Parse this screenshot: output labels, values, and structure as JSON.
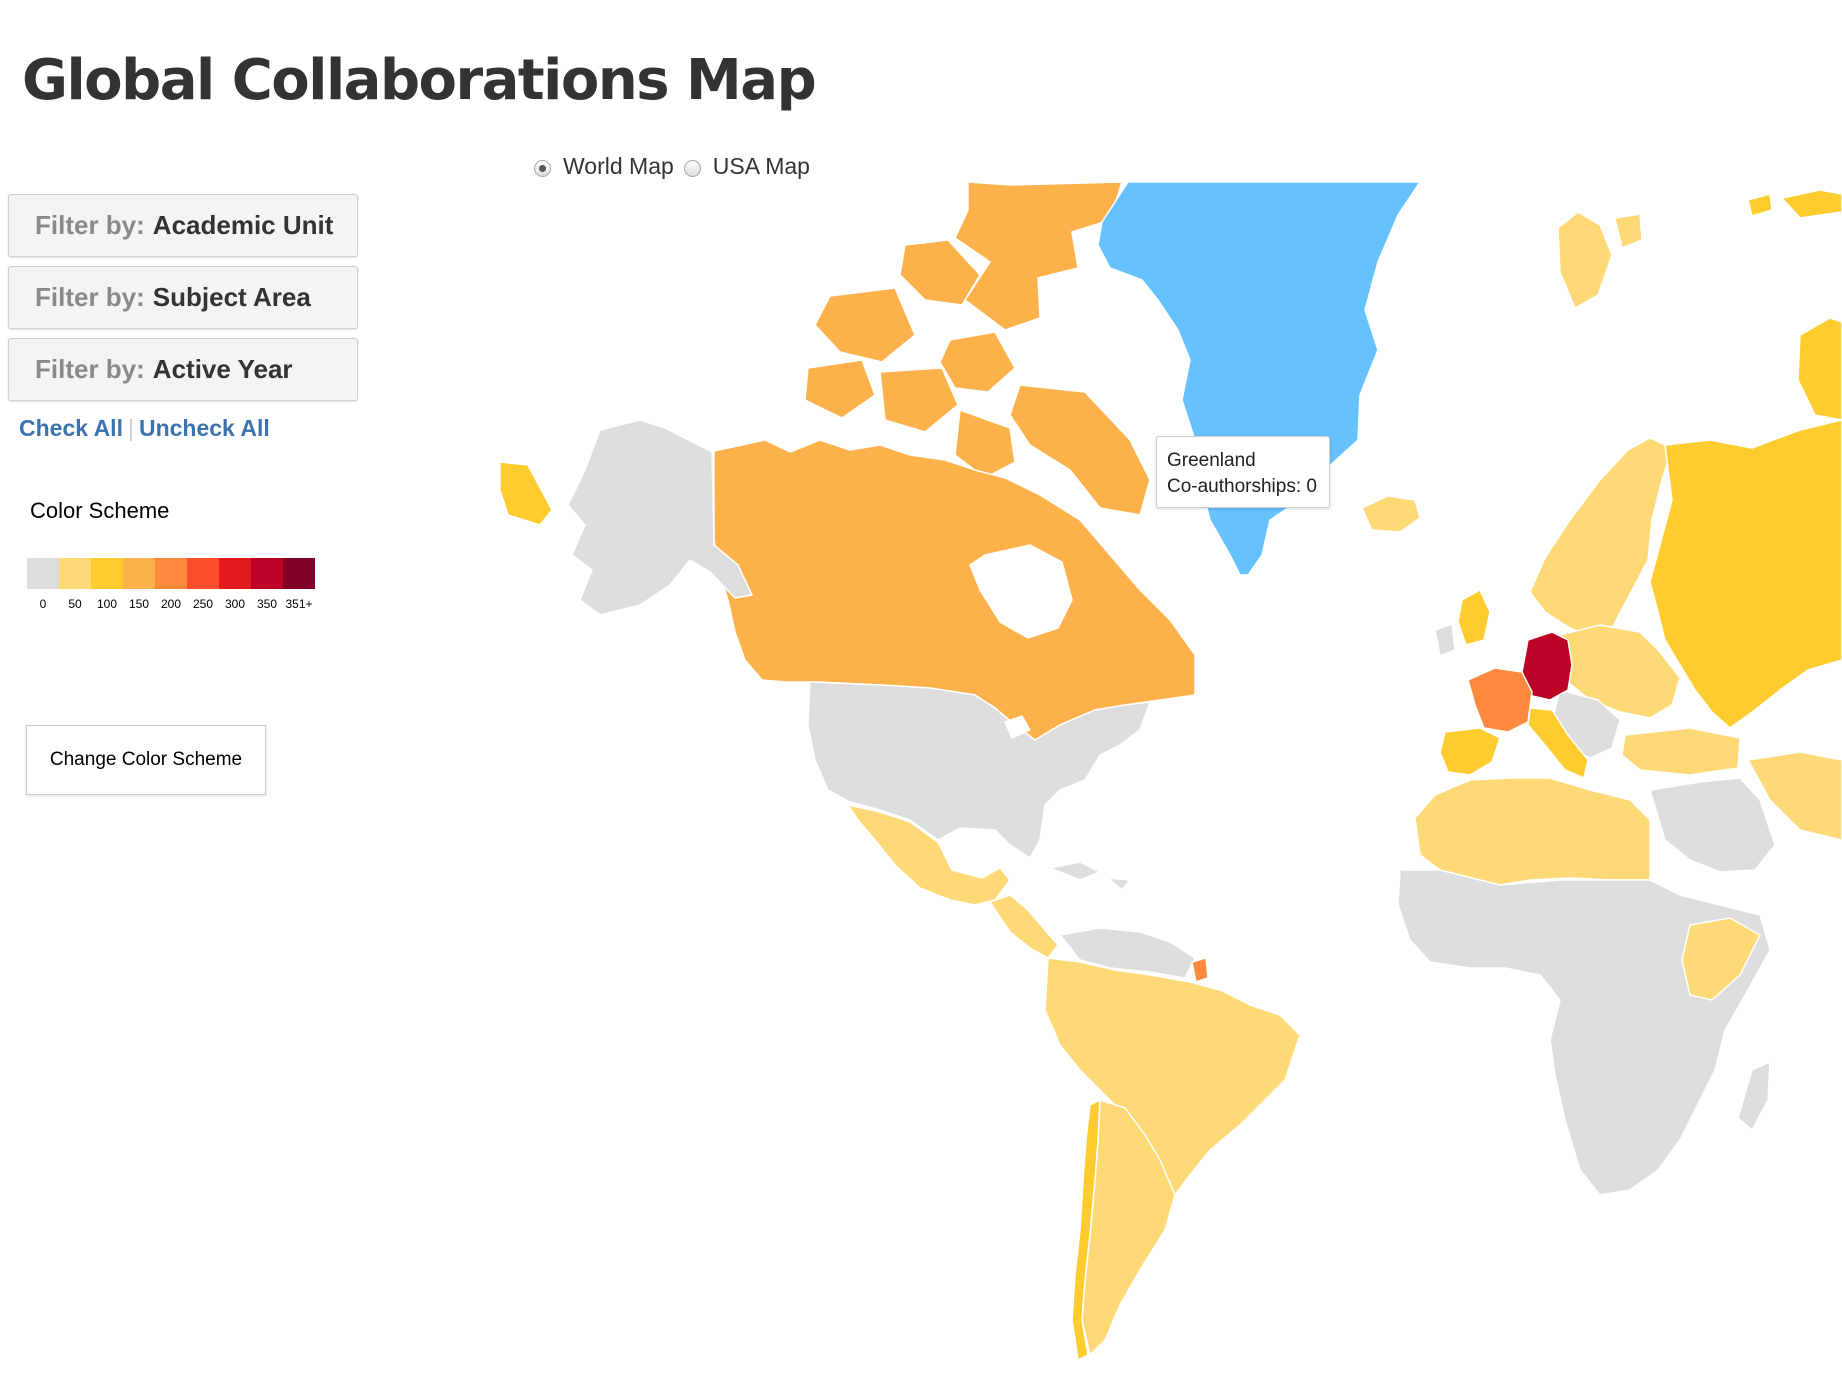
{
  "page": {
    "title": "Global Collaborations Map"
  },
  "sidebar": {
    "filters": [
      {
        "prefix": "Filter by:",
        "value": "Academic Unit"
      },
      {
        "prefix": "Filter by:",
        "value": "Subject Area"
      },
      {
        "prefix": "Filter by:",
        "value": "Active Year"
      }
    ],
    "check_all": "Check All",
    "uncheck_all": "Uncheck All",
    "separator": "|"
  },
  "legend": {
    "title": "Color Scheme",
    "labels": [
      "0",
      "50",
      "100",
      "150",
      "200",
      "250",
      "300",
      "350",
      "351+"
    ],
    "colors": [
      "#dddddd",
      "#fed976",
      "#fecc2e",
      "#fdb14a",
      "#fd8a3c",
      "#fc4e2a",
      "#e31a1c",
      "#bd0026",
      "#800026"
    ]
  },
  "change_color_button": "Change Color Scheme",
  "map_toggle": {
    "options": [
      {
        "label": "World Map",
        "selected": true
      },
      {
        "label": "USA Map",
        "selected": false
      }
    ]
  },
  "tooltip": {
    "country": "Greenland",
    "metric_label": "Co-authorships:",
    "metric_value": "0",
    "line2": "Co-authorships: 0"
  },
  "map_data": {
    "selected_country": "Greenland",
    "selected_color": "#66c2ff",
    "regions": [
      {
        "name": "Greenland",
        "bin": "0",
        "color": "#66c2ff"
      },
      {
        "name": "Canada",
        "bin": "150",
        "color": "#fdb14a"
      },
      {
        "name": "USA",
        "bin": "0",
        "color": "#dddddd"
      },
      {
        "name": "Alaska",
        "bin": "0",
        "color": "#dddddd"
      },
      {
        "name": "Mexico",
        "bin": "50",
        "color": "#fed976"
      },
      {
        "name": "Central America",
        "bin": "50",
        "color": "#fed976"
      },
      {
        "name": "Brazil",
        "bin": "50",
        "color": "#fed976"
      },
      {
        "name": "Chile",
        "bin": "100",
        "color": "#fecc2e"
      },
      {
        "name": "Argentina",
        "bin": "50",
        "color": "#fed976"
      },
      {
        "name": "French Guiana",
        "bin": "200",
        "color": "#fd8a3c"
      },
      {
        "name": "Germany",
        "bin": "350",
        "color": "#bd0026"
      },
      {
        "name": "France",
        "bin": "200",
        "color": "#fd8a3c"
      },
      {
        "name": "Spain",
        "bin": "100",
        "color": "#fecc2e"
      },
      {
        "name": "Russia",
        "bin": "100",
        "color": "#fecc2e"
      },
      {
        "name": "Scandinavia",
        "bin": "50",
        "color": "#fed976"
      },
      {
        "name": "North Africa",
        "bin": "50",
        "color": "#fed976"
      },
      {
        "name": "Sub-Saharan Africa",
        "bin": "0",
        "color": "#dddddd"
      },
      {
        "name": "Ethiopia",
        "bin": "50",
        "color": "#fed976"
      },
      {
        "name": "Iceland",
        "bin": "50",
        "color": "#fed976"
      },
      {
        "name": "Svalbard",
        "bin": "50",
        "color": "#fed976"
      }
    ]
  }
}
